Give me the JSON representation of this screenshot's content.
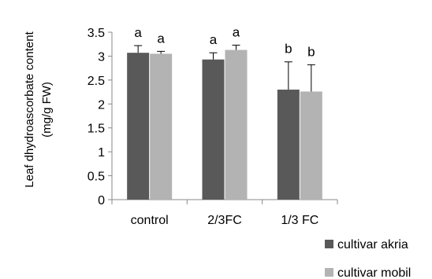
{
  "chart_data": {
    "type": "bar",
    "title": "",
    "xlabel": "",
    "ylabel_lines": [
      "Leaf dhydroascorbate content",
      "(mg/g FW)"
    ],
    "categories": [
      "control",
      "2/3FC",
      "1/3 FC"
    ],
    "ylim": [
      0,
      3.5
    ],
    "yticks": [
      "0",
      "0.5",
      "1",
      "1.5",
      "2",
      "2.5",
      "3",
      "3.5"
    ],
    "grid": false,
    "legend_position": "bottom-right",
    "series": [
      {
        "name": "cultivar akria",
        "color": "#595959",
        "values": [
          3.07,
          2.93,
          2.3
        ],
        "errors": [
          0.15,
          0.14,
          0.58
        ],
        "labels": [
          "a",
          "a",
          "b"
        ]
      },
      {
        "name": "cultivar mobil",
        "color": "#b3b3b3",
        "values": [
          3.05,
          3.13,
          2.26
        ],
        "errors": [
          0.05,
          0.1,
          0.56
        ],
        "labels": [
          "a",
          "a",
          "b"
        ]
      }
    ]
  }
}
